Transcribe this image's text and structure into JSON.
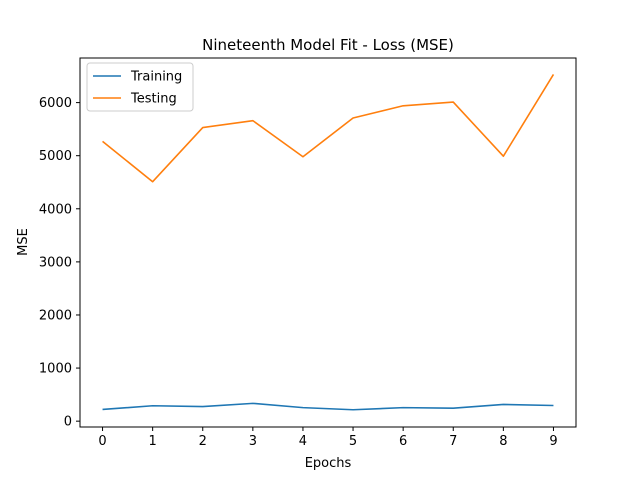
{
  "chart_data": {
    "type": "line",
    "title": "Nineteenth Model Fit - Loss (MSE)",
    "xlabel": "Epochs",
    "ylabel": "MSE",
    "x": [
      0,
      1,
      2,
      3,
      4,
      5,
      6,
      7,
      8,
      9
    ],
    "xlim": [
      -0.45,
      9.45
    ],
    "ylim": [
      -110,
      6840
    ],
    "xticks": [
      "0",
      "1",
      "2",
      "3",
      "4",
      "5",
      "6",
      "7",
      "8",
      "9"
    ],
    "yticks": [
      0,
      1000,
      2000,
      3000,
      4000,
      5000,
      6000
    ],
    "ytick_labels": [
      "0",
      "1000",
      "2000",
      "3000",
      "4000",
      "5000",
      "6000"
    ],
    "grid": false,
    "legend_position": "upper-left",
    "series": [
      {
        "name": "Training",
        "color": "#1f77b4",
        "values": [
          220,
          290,
          275,
          335,
          255,
          215,
          255,
          245,
          315,
          295
        ]
      },
      {
        "name": "Testing",
        "color": "#ff7f0e",
        "values": [
          5270,
          4510,
          5530,
          5660,
          4980,
          5710,
          5940,
          6010,
          4990,
          6530
        ]
      }
    ]
  }
}
